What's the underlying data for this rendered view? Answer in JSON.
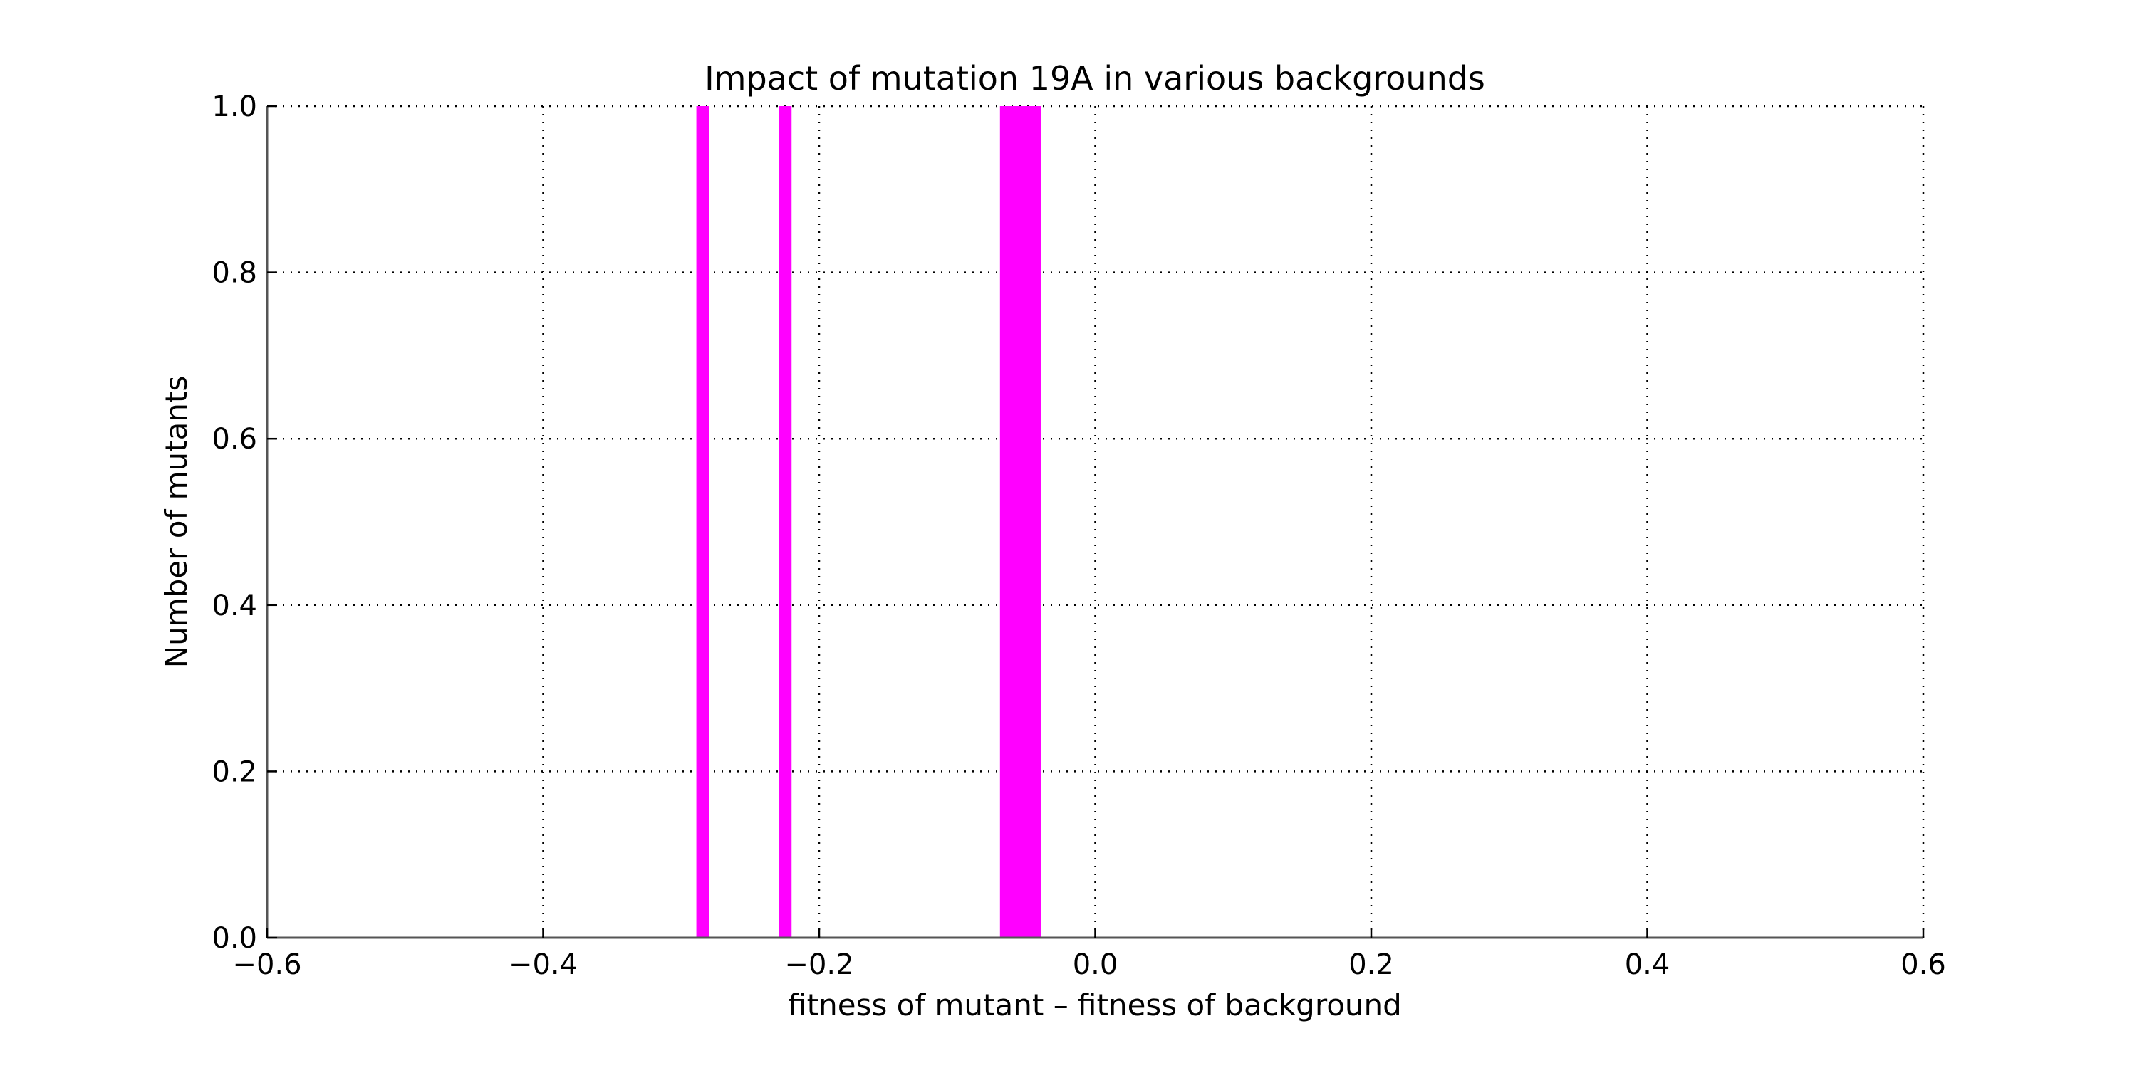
{
  "chart_data": {
    "type": "bar",
    "title": "Impact of mutation 19A in various backgrounds",
    "xlabel": "fitness of mutant  –  fitness of background",
    "ylabel": "Number of mutants",
    "xlim": [
      -0.6,
      0.6
    ],
    "ylim": [
      0.0,
      1.0
    ],
    "xticks": [
      -0.6,
      -0.4,
      -0.2,
      0.0,
      0.2,
      0.4,
      0.6
    ],
    "xtick_labels": [
      "−0.6",
      "−0.4",
      "−0.2",
      "0.0",
      "0.2",
      "0.4",
      "0.6"
    ],
    "yticks": [
      0.0,
      0.2,
      0.4,
      0.6,
      0.8,
      1.0
    ],
    "ytick_labels": [
      "0.0",
      "0.2",
      "0.4",
      "0.6",
      "0.8",
      "1.0"
    ],
    "grid": true,
    "bar_color": "#ff00ff",
    "bars": [
      {
        "x0": -0.289,
        "x1": -0.28,
        "value": 1.0
      },
      {
        "x0": -0.229,
        "x1": -0.22,
        "value": 1.0
      },
      {
        "x0": -0.069,
        "x1": -0.039,
        "value": 1.0
      }
    ]
  }
}
